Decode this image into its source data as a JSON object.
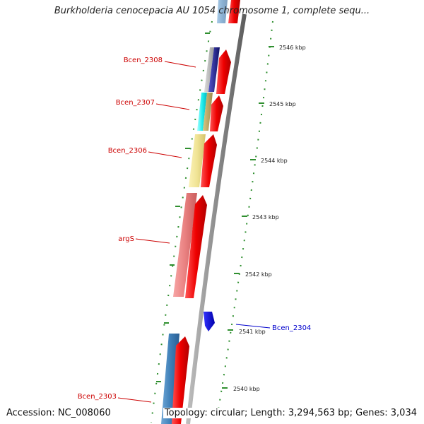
{
  "header": {
    "title": "Burkholderia cenocepacia AU 1054 chromosome 1, complete sequ..."
  },
  "footer": {
    "accession": "Accession: NC_008060",
    "summary": "Topology: circular; Length: 3,294,563 bp; Genes: 3,034"
  },
  "scale_ticks": [
    "2546 kbp",
    "2545 kbp",
    "2544 kbp",
    "2543 kbp",
    "2542 kbp",
    "2541 kbp",
    "2540 kbp"
  ],
  "gene_labels": [
    {
      "text": "Bcen_2308",
      "color": "#cc0000"
    },
    {
      "text": "Bcen_2307",
      "color": "#cc0000"
    },
    {
      "text": "Bcen_2306",
      "color": "#cc0000"
    },
    {
      "text": "argS",
      "color": "#cc0000"
    },
    {
      "text": "Bcen_2304",
      "color": "#0000cc"
    },
    {
      "text": "Bcen_2303",
      "color": "#cc0000"
    }
  ],
  "colors": {
    "cds_forward": "#ee1111",
    "cds_reverse": "#0000ee",
    "backbone": "#8c8c8c",
    "tick_mark": "#2f8f2f"
  }
}
